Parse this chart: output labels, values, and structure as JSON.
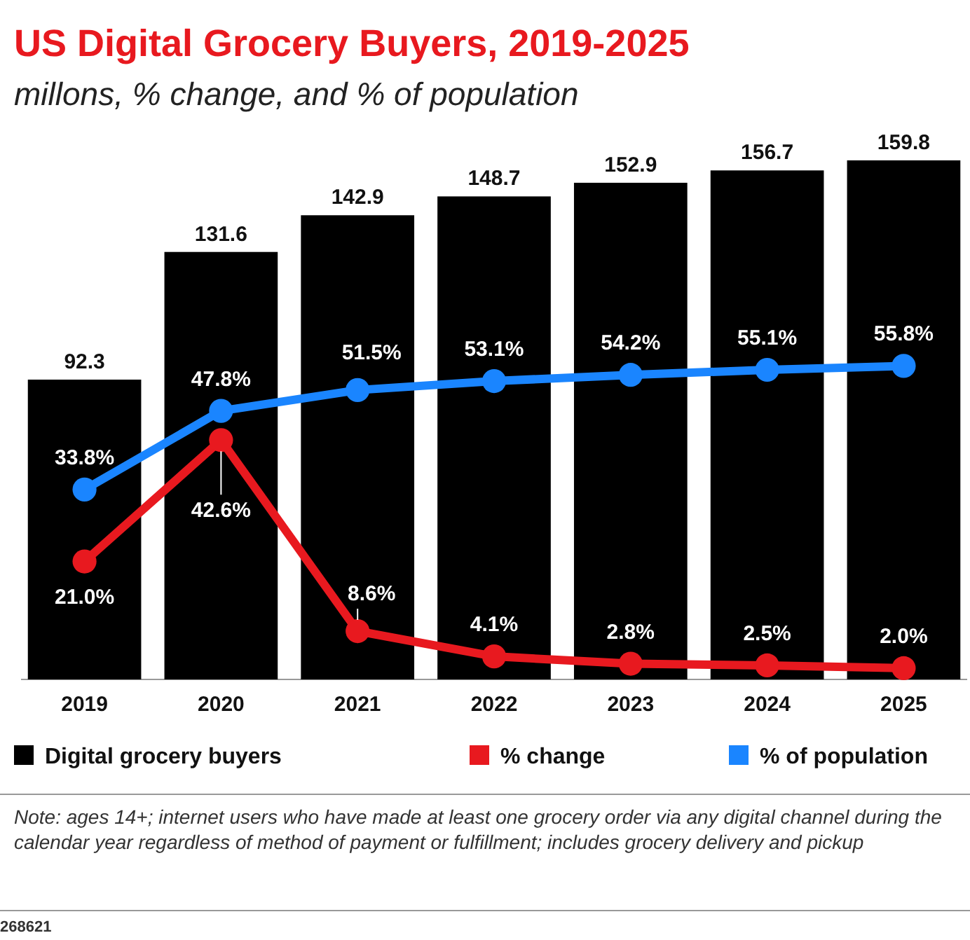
{
  "chart_data": {
    "type": "bar",
    "title": "US Digital Grocery Buyers, 2019-2025",
    "subtitle": "millons, % change, and % of population",
    "categories": [
      "2019",
      "2020",
      "2021",
      "2022",
      "2023",
      "2024",
      "2025"
    ],
    "series": [
      {
        "name": "Digital grocery buyers",
        "color": "#000000",
        "values": [
          92.3,
          131.6,
          142.9,
          148.7,
          152.9,
          156.7,
          159.8
        ]
      },
      {
        "name": "% change",
        "type": "line",
        "axis": "y2",
        "color": "#e8191f",
        "values": [
          21.0,
          42.6,
          8.6,
          4.1,
          2.8,
          2.5,
          2.0
        ],
        "value_labels": [
          "21.0%",
          "42.6%",
          "8.6%",
          "4.1%",
          "2.8%",
          "2.5%",
          "2.0%"
        ]
      },
      {
        "name": "% of population",
        "type": "line",
        "axis": "y2",
        "color": "#1a85ff",
        "values": [
          33.8,
          47.8,
          51.5,
          53.1,
          54.2,
          55.1,
          55.8
        ],
        "value_labels": [
          "33.8%",
          "47.8%",
          "51.5%",
          "53.1%",
          "54.2%",
          "55.1%",
          "55.8%"
        ]
      }
    ],
    "ylim": [
      0,
      160
    ],
    "y2lim": [
      0,
      92.5
    ],
    "tick_labels": "x",
    "data_labels": true,
    "marker": "circle",
    "legend": "bottom",
    "annotations": [
      "Note: ages 14+; internet users who have made at least one grocery order via any digital channel during the calendar year regardless of method of payment or fulfillment; includes grocery delivery and pickup",
      "268621"
    ]
  }
}
